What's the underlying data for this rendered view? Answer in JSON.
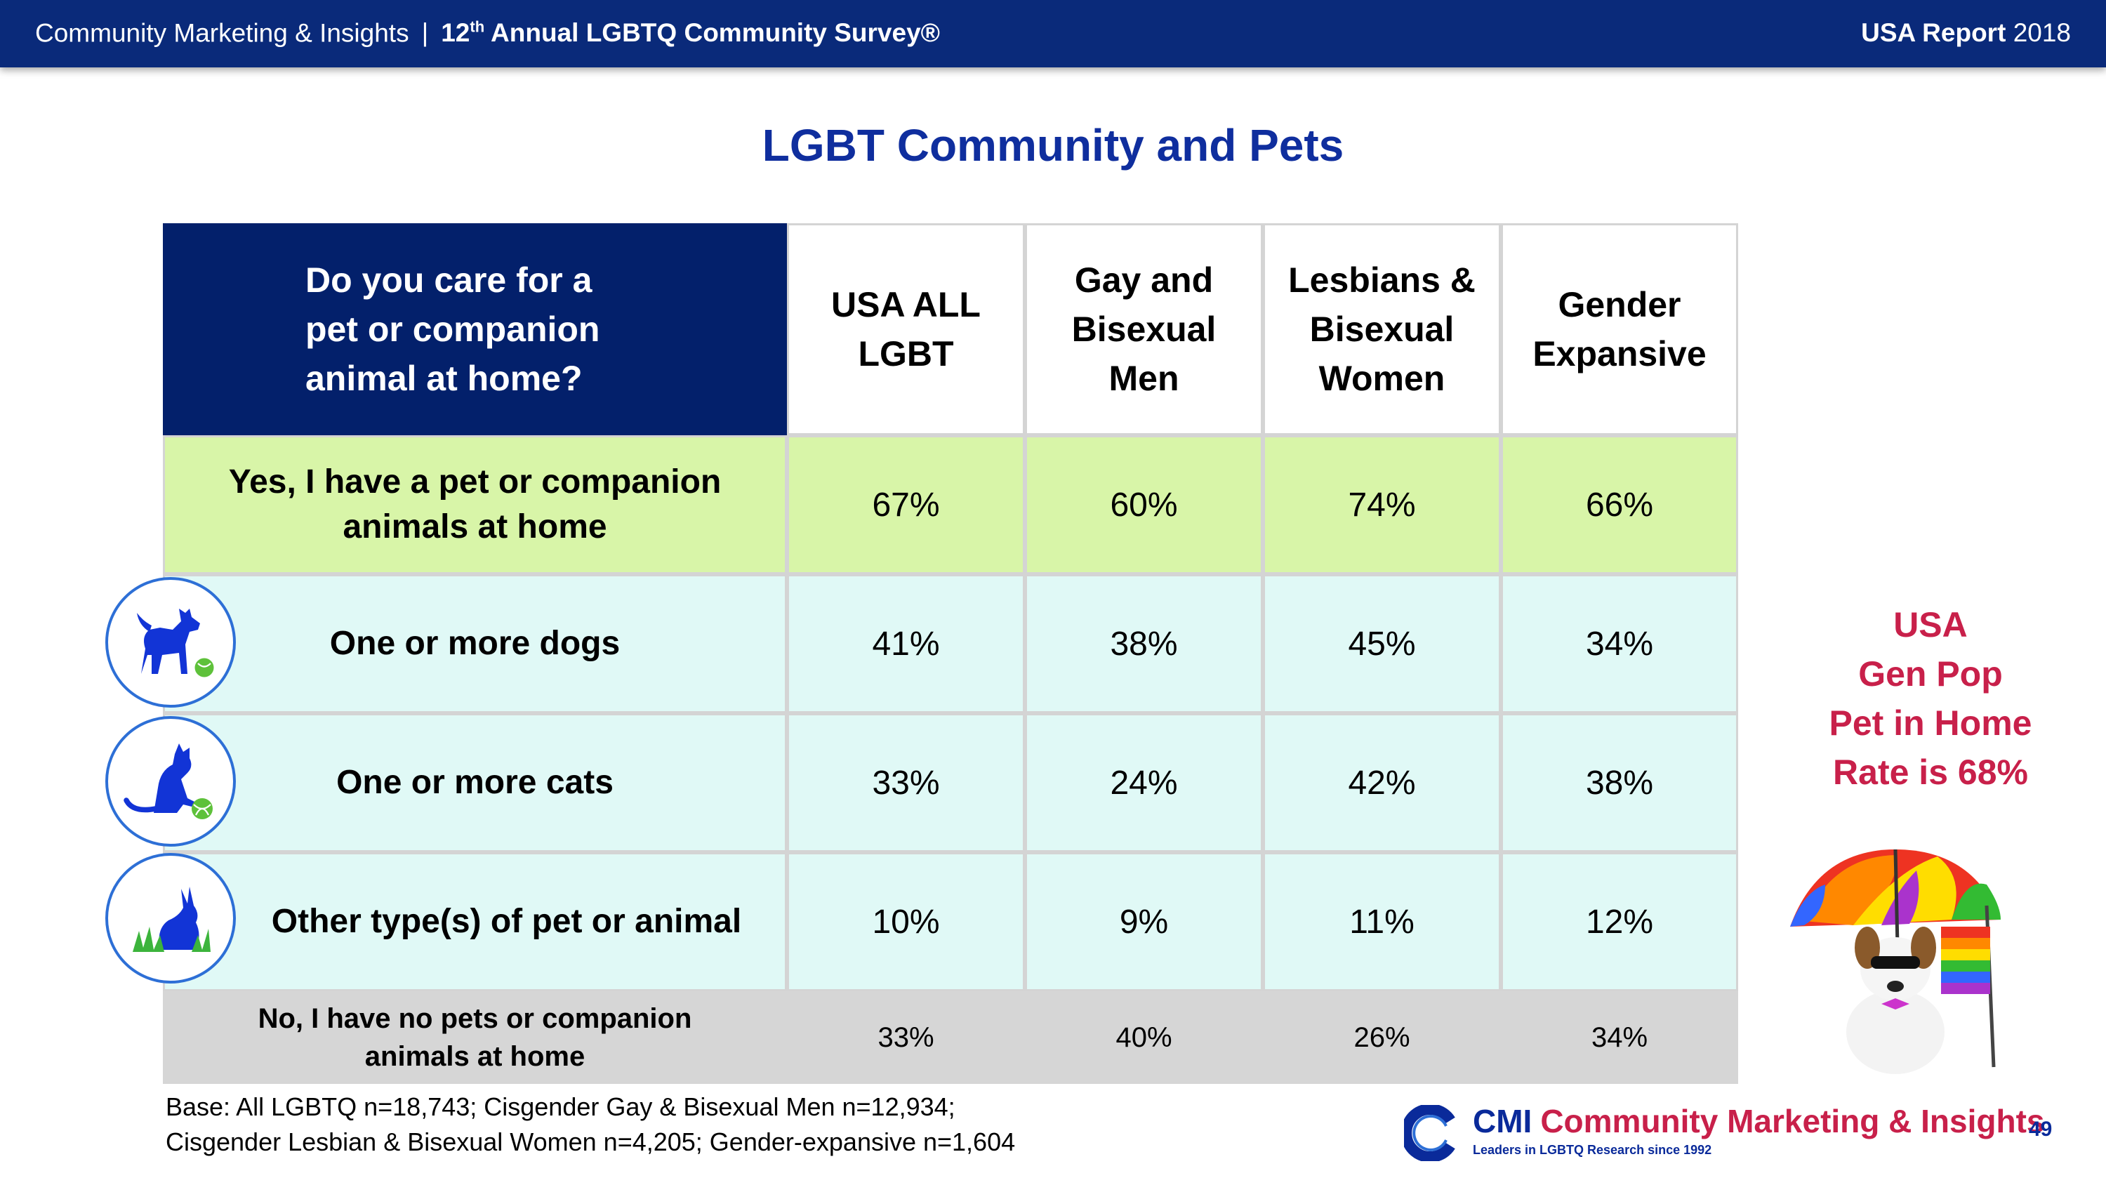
{
  "header": {
    "org": "Community Marketing & Insights",
    "separator": "|",
    "survey_prefix": "12",
    "survey_ord": "th",
    "survey_suffix": " Annual LGBTQ Community Survey®",
    "report_bold": "USA Report",
    "report_year": "2018"
  },
  "title": "LGBT Community and Pets",
  "table": {
    "question": "Do you care for a pet or companion animal at home?",
    "columns": [
      "USA ALL LGBT",
      "Gay and Bisexual Men",
      "Lesbians & Bisexual Women",
      "Gender Expansive"
    ],
    "rows": [
      {
        "label": "Yes, I have a pet or companion animals at home",
        "values": [
          "67%",
          "60%",
          "74%",
          "66%"
        ]
      },
      {
        "label": "One or more dogs",
        "values": [
          "41%",
          "38%",
          "45%",
          "34%"
        ]
      },
      {
        "label": "One or more cats",
        "values": [
          "33%",
          "24%",
          "42%",
          "38%"
        ]
      },
      {
        "label": "Other type(s) of pet or animal",
        "values": [
          "10%",
          "9%",
          "11%",
          "12%"
        ]
      },
      {
        "label": "No, I have no pets or companion animals at home",
        "values": [
          "33%",
          "40%",
          "26%",
          "34%"
        ]
      }
    ]
  },
  "icons": [
    "dog-icon",
    "cat-icon",
    "rabbit-icon"
  ],
  "base_note": {
    "line1": "Base: All LGBTQ n=18,743; Cisgender Gay & Bisexual Men n=12,934;",
    "line2": "Cisgender Lesbian & Bisexual Women n=4,205; Gender-expansive n=1,604"
  },
  "genpop": [
    "USA",
    "Gen Pop",
    "Pet in Home",
    "Rate is 68%"
  ],
  "logo": {
    "cmi": "CMI",
    "name": "Community Marketing & Insights",
    "tagline": "Leaders in LGBTQ Research since 1992"
  },
  "page_number": "49",
  "colors": {
    "navy": "#03206b",
    "title_blue": "#0f2e9e",
    "yes_green": "#d8f5a8",
    "sub_mint": "#e0f9f6",
    "no_gray": "#d6d6d6",
    "accent_red": "#c8204a"
  }
}
